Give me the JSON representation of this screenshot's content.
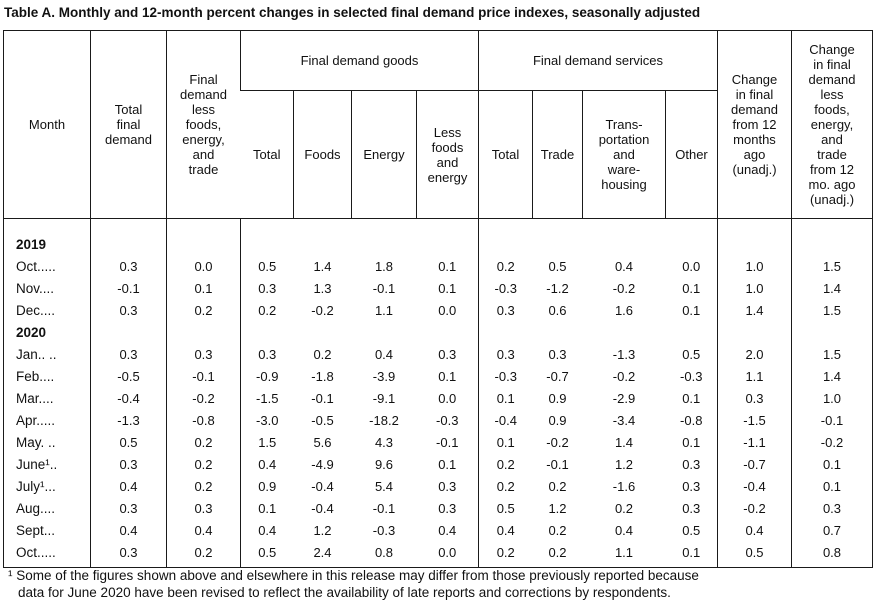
{
  "title": "Table A. Monthly and 12-month percent changes in selected final demand price indexes, seasonally adjusted",
  "table": {
    "header": {
      "month": "Month",
      "total_final_demand": "Total\nfinal\ndemand",
      "less_fet": "Final\ndemand\nless\nfoods,\nenergy,\nand\ntrade",
      "goods_group": "Final demand goods",
      "services_group": "Final demand services",
      "goods_cols": [
        "Total",
        "Foods",
        "Energy",
        "Less\nfoods\nand\nenergy"
      ],
      "services_cols": [
        "Total",
        "Trade",
        "Trans-\nportation\nand\nware-\nhousing",
        "Other"
      ],
      "change_12mo": "Change\nin final\ndemand\nfrom 12\nmonths\nago\n(unadj.)",
      "change_less_fet_12mo": "Change\nin final\ndemand\nless\nfoods,\nenergy,\nand\ntrade\nfrom 12\nmo. ago\n(unadj.)"
    },
    "rows": [
      {
        "type": "year",
        "label": "2019",
        "values": []
      },
      {
        "type": "data",
        "label": "Oct.....",
        "values": [
          "0.3",
          "0.0",
          "0.5",
          "1.4",
          "1.8",
          "0.1",
          "0.2",
          "0.5",
          "0.4",
          "0.0",
          "1.0",
          "1.5"
        ]
      },
      {
        "type": "data",
        "label": "Nov....",
        "values": [
          "-0.1",
          "0.1",
          "0.3",
          "1.3",
          "-0.1",
          "0.1",
          "-0.3",
          "-1.2",
          "-0.2",
          "0.1",
          "1.0",
          "1.4"
        ]
      },
      {
        "type": "data",
        "label": "Dec....",
        "values": [
          "0.3",
          "0.2",
          "0.2",
          "-0.2",
          "1.1",
          "0.0",
          "0.3",
          "0.6",
          "1.6",
          "0.1",
          "1.4",
          "1.5"
        ]
      },
      {
        "type": "year",
        "label": "2020",
        "values": []
      },
      {
        "type": "data",
        "label": "Jan.. ..",
        "values": [
          "0.3",
          "0.3",
          "0.3",
          "0.2",
          "0.4",
          "0.3",
          "0.3",
          "0.3",
          "-1.3",
          "0.5",
          "2.0",
          "1.5"
        ]
      },
      {
        "type": "data",
        "label": "Feb....",
        "values": [
          "-0.5",
          "-0.1",
          "-0.9",
          "-1.8",
          "-3.9",
          "0.1",
          "-0.3",
          "-0.7",
          "-0.2",
          "-0.3",
          "1.1",
          "1.4"
        ]
      },
      {
        "type": "data",
        "label": "Mar....",
        "values": [
          "-0.4",
          "-0.2",
          "-1.5",
          "-0.1",
          "-9.1",
          "0.0",
          "0.1",
          "0.9",
          "-2.9",
          "0.1",
          "0.3",
          "1.0"
        ]
      },
      {
        "type": "data",
        "label": "Apr.....",
        "values": [
          "-1.3",
          "-0.8",
          "-3.0",
          "-0.5",
          "-18.2",
          "-0.3",
          "-0.4",
          "0.9",
          "-3.4",
          "-0.8",
          "-1.5",
          "-0.1"
        ]
      },
      {
        "type": "data",
        "label": "May. ..",
        "values": [
          "0.5",
          "0.2",
          "1.5",
          "5.6",
          "4.3",
          "-0.1",
          "0.1",
          "-0.2",
          "1.4",
          "0.1",
          "-1.1",
          "-0.2"
        ]
      },
      {
        "type": "data",
        "label": "June¹..",
        "values": [
          "0.3",
          "0.2",
          "0.4",
          "-4.9",
          "9.6",
          "0.1",
          "0.2",
          "-0.1",
          "1.2",
          "0.3",
          "-0.7",
          "0.1"
        ]
      },
      {
        "type": "data",
        "label": "July¹...",
        "values": [
          "0.4",
          "0.2",
          "0.9",
          "-0.4",
          "5.4",
          "0.3",
          "0.2",
          "0.2",
          "-1.6",
          "0.3",
          "-0.4",
          "0.1"
        ]
      },
      {
        "type": "data",
        "label": "Aug....",
        "values": [
          "0.3",
          "0.3",
          "0.1",
          "-0.4",
          "-0.1",
          "0.3",
          "0.5",
          "1.2",
          "0.2",
          "0.3",
          "-0.2",
          "0.3"
        ]
      },
      {
        "type": "data",
        "label": "Sept...",
        "values": [
          "0.4",
          "0.4",
          "0.4",
          "1.2",
          "-0.3",
          "0.4",
          "0.4",
          "0.2",
          "0.4",
          "0.5",
          "0.4",
          "0.7"
        ]
      },
      {
        "type": "data",
        "label": "Oct.....",
        "values": [
          "0.3",
          "0.2",
          "0.5",
          "2.4",
          "0.8",
          "0.0",
          "0.2",
          "0.2",
          "1.1",
          "0.1",
          "0.5",
          "0.8"
        ]
      }
    ],
    "border_value_columns": [
      0,
      1,
      2,
      6,
      10,
      11
    ]
  },
  "footnote": "¹ Some of the figures shown above and elsewhere in this release may differ from those previously reported because\ndata for June 2020 have been revised to reflect the availability of late reports and corrections by respondents."
}
